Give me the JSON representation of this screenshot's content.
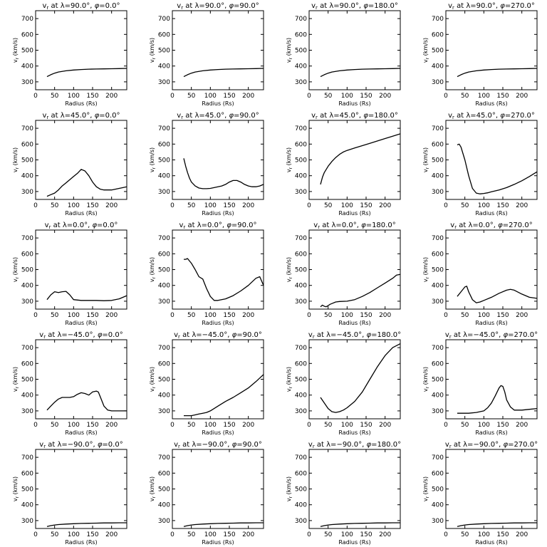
{
  "chart_data": [
    {
      "type": "line",
      "title": "v$_r$ at λ=90.0°, φ=0.0°",
      "title_parts": {
        "sym": "v",
        "sub": "r",
        "lat": "90.0",
        "lon": "0.0"
      },
      "xlabel": "Radius (Rs)",
      "ylabel": "v_r (km/s)",
      "xlim": [
        0,
        240
      ],
      "ylim": [
        250,
        750
      ],
      "xticks": [
        0,
        50,
        100,
        150,
        200
      ],
      "yticks": [
        300,
        400,
        500,
        600,
        700
      ],
      "x": [
        30,
        40,
        50,
        60,
        80,
        100,
        120,
        140,
        160,
        180,
        200,
        220,
        240
      ],
      "y": [
        333,
        345,
        355,
        362,
        370,
        375,
        378,
        380,
        381,
        382,
        383,
        384,
        385
      ]
    },
    {
      "type": "line",
      "title": "v_r at λ=90.0°, φ=90.0°",
      "title_parts": {
        "sym": "v",
        "sub": "r",
        "lat": "90.0",
        "lon": "90.0"
      },
      "xlabel": "Radius (Rs)",
      "ylabel": "v_r (km/s)",
      "xlim": [
        0,
        240
      ],
      "ylim": [
        250,
        750
      ],
      "xticks": [
        0,
        50,
        100,
        150,
        200
      ],
      "yticks": [
        300,
        400,
        500,
        600,
        700
      ],
      "x": [
        30,
        40,
        50,
        60,
        80,
        100,
        120,
        140,
        160,
        180,
        200,
        220,
        240
      ],
      "y": [
        333,
        345,
        355,
        362,
        370,
        375,
        378,
        380,
        381,
        382,
        383,
        384,
        385
      ]
    },
    {
      "type": "line",
      "title": "v_r at λ=90.0°, φ=180.0°",
      "title_parts": {
        "sym": "v",
        "sub": "r",
        "lat": "90.0",
        "lon": "180.0"
      },
      "xlabel": "Radius (Rs)",
      "ylabel": "v_r (km/s)",
      "xlim": [
        0,
        240
      ],
      "ylim": [
        250,
        750
      ],
      "xticks": [
        0,
        50,
        100,
        150,
        200
      ],
      "yticks": [
        300,
        400,
        500,
        600,
        700
      ],
      "x": [
        30,
        40,
        50,
        60,
        80,
        100,
        120,
        140,
        160,
        180,
        200,
        220,
        240
      ],
      "y": [
        333,
        345,
        355,
        362,
        370,
        375,
        378,
        380,
        381,
        382,
        383,
        384,
        385
      ]
    },
    {
      "type": "line",
      "title": "v_r at λ=90.0°, φ=270.0°",
      "title_parts": {
        "sym": "v",
        "sub": "r",
        "lat": "90.0",
        "lon": "270.0"
      },
      "xlabel": "Radius (Rs)",
      "ylabel": "v_r (km/s)",
      "xlim": [
        0,
        240
      ],
      "ylim": [
        250,
        750
      ],
      "xticks": [
        0,
        50,
        100,
        150,
        200
      ],
      "yticks": [
        300,
        400,
        500,
        600,
        700
      ],
      "x": [
        30,
        40,
        50,
        60,
        80,
        100,
        120,
        140,
        160,
        180,
        200,
        220,
        240
      ],
      "y": [
        333,
        345,
        355,
        362,
        370,
        375,
        378,
        380,
        381,
        382,
        383,
        384,
        385
      ]
    },
    {
      "type": "line",
      "title": "v_r at λ=45.0°, φ=0.0°",
      "title_parts": {
        "sym": "v",
        "sub": "r",
        "lat": "45.0",
        "lon": "0.0"
      },
      "xlabel": "Radius (Rs)",
      "ylabel": "v_r (km/s)",
      "xlim": [
        0,
        240
      ],
      "ylim": [
        250,
        750
      ],
      "xticks": [
        0,
        50,
        100,
        150,
        200
      ],
      "yticks": [
        300,
        400,
        500,
        600,
        700
      ],
      "x": [
        30,
        40,
        50,
        60,
        70,
        80,
        90,
        100,
        110,
        120,
        130,
        140,
        150,
        160,
        170,
        180,
        190,
        200,
        210,
        220,
        230,
        240
      ],
      "y": [
        270,
        280,
        290,
        310,
        335,
        355,
        375,
        395,
        415,
        440,
        430,
        400,
        360,
        330,
        315,
        310,
        310,
        310,
        315,
        320,
        325,
        330
      ]
    },
    {
      "type": "line",
      "title": "v_r at λ=45.0°, φ=90.0°",
      "title_parts": {
        "sym": "v",
        "sub": "r",
        "lat": "45.0",
        "lon": "90.0"
      },
      "xlabel": "Radius (Rs)",
      "ylabel": "v_r (km/s)",
      "xlim": [
        0,
        240
      ],
      "ylim": [
        250,
        750
      ],
      "xticks": [
        0,
        50,
        100,
        150,
        200
      ],
      "yticks": [
        300,
        400,
        500,
        600,
        700
      ],
      "x": [
        30,
        35,
        40,
        45,
        50,
        60,
        70,
        80,
        90,
        100,
        110,
        120,
        130,
        140,
        150,
        160,
        170,
        180,
        190,
        200,
        210,
        220,
        230,
        240
      ],
      "y": [
        510,
        460,
        420,
        385,
        360,
        335,
        322,
        318,
        318,
        320,
        325,
        330,
        335,
        345,
        360,
        370,
        370,
        360,
        345,
        335,
        330,
        330,
        335,
        345
      ]
    },
    {
      "type": "line",
      "title": "v_r at λ=45.0°, φ=180.0°",
      "title_parts": {
        "sym": "v",
        "sub": "r",
        "lat": "45.0",
        "lon": "180.0"
      },
      "xlabel": "Radius (Rs)",
      "ylabel": "v_r (km/s)",
      "xlim": [
        0,
        240
      ],
      "ylim": [
        250,
        750
      ],
      "xticks": [
        0,
        50,
        100,
        150,
        200
      ],
      "yticks": [
        300,
        400,
        500,
        600,
        700
      ],
      "x": [
        30,
        35,
        40,
        50,
        60,
        70,
        80,
        90,
        100,
        120,
        140,
        160,
        180,
        200,
        220,
        240
      ],
      "y": [
        345,
        390,
        420,
        460,
        490,
        515,
        535,
        550,
        560,
        575,
        590,
        605,
        620,
        635,
        650,
        665
      ]
    },
    {
      "type": "line",
      "title": "v_r at λ=45.0°, φ=270.0°",
      "title_parts": {
        "sym": "v",
        "sub": "r",
        "lat": "45.0",
        "lon": "270.0"
      },
      "xlabel": "Radius (Rs)",
      "ylabel": "v_r (km/s)",
      "xlim": [
        0,
        240
      ],
      "ylim": [
        250,
        750
      ],
      "xticks": [
        0,
        50,
        100,
        150,
        200
      ],
      "yticks": [
        300,
        400,
        500,
        600,
        700
      ],
      "x": [
        30,
        35,
        40,
        50,
        60,
        70,
        80,
        90,
        100,
        110,
        120,
        140,
        160,
        180,
        200,
        220,
        240
      ],
      "y": [
        595,
        600,
        580,
        500,
        400,
        320,
        290,
        285,
        288,
        292,
        298,
        310,
        325,
        345,
        368,
        395,
        425
      ]
    },
    {
      "type": "line",
      "title": "v_r at λ=0.0°, φ=0.0°",
      "title_parts": {
        "sym": "v",
        "sub": "r",
        "lat": "0.0",
        "lon": "0.0"
      },
      "xlabel": "Radius (Rs)",
      "ylabel": "v_r (km/s)",
      "xlim": [
        0,
        240
      ],
      "ylim": [
        250,
        750
      ],
      "xticks": [
        0,
        50,
        100,
        150,
        200
      ],
      "yticks": [
        300,
        400,
        500,
        600,
        700
      ],
      "x": [
        30,
        40,
        50,
        60,
        70,
        80,
        90,
        100,
        120,
        140,
        160,
        180,
        200,
        220,
        240
      ],
      "y": [
        310,
        340,
        360,
        355,
        360,
        362,
        340,
        310,
        305,
        305,
        305,
        303,
        305,
        315,
        335
      ]
    },
    {
      "type": "line",
      "title": "v_r at λ=0.0°, φ=90.0°",
      "title_parts": {
        "sym": "v",
        "sub": "r",
        "lat": "0.0",
        "lon": "90.0"
      },
      "xlabel": "Radius (Rs)",
      "ylabel": "v_r (km/s)",
      "xlim": [
        0,
        240
      ],
      "ylim": [
        250,
        750
      ],
      "xticks": [
        0,
        50,
        100,
        150,
        200
      ],
      "yticks": [
        300,
        400,
        500,
        600,
        700
      ],
      "x": [
        30,
        35,
        40,
        50,
        60,
        70,
        80,
        90,
        100,
        110,
        120,
        140,
        160,
        180,
        200,
        220,
        230,
        240
      ],
      "y": [
        565,
        565,
        570,
        540,
        500,
        455,
        440,
        380,
        330,
        305,
        305,
        315,
        335,
        365,
        400,
        445,
        455,
        400
      ]
    },
    {
      "type": "line",
      "title": "v_r at λ=0.0°, φ=180.0°",
      "title_parts": {
        "sym": "v",
        "sub": "r",
        "lat": "0.0",
        "lon": "180.0"
      },
      "xlabel": "Radius (Rs)",
      "ylabel": "v_r (km/s)",
      "xlim": [
        0,
        240
      ],
      "ylim": [
        250,
        750
      ],
      "xticks": [
        0,
        50,
        100,
        150,
        200
      ],
      "yticks": [
        300,
        400,
        500,
        600,
        700
      ],
      "x": [
        30,
        35,
        40,
        45,
        50,
        55,
        60,
        70,
        80,
        100,
        120,
        140,
        160,
        180,
        200,
        220,
        230,
        240
      ],
      "y": [
        265,
        275,
        268,
        265,
        272,
        280,
        285,
        295,
        298,
        300,
        310,
        330,
        355,
        385,
        415,
        445,
        465,
        470
      ]
    },
    {
      "type": "line",
      "title": "v_r at λ=0.0°, φ=270.0°",
      "title_parts": {
        "sym": "v",
        "sub": "r",
        "lat": "0.0",
        "lon": "270.0"
      },
      "xlabel": "Radius (Rs)",
      "ylabel": "v_r (km/s)",
      "xlim": [
        0,
        240
      ],
      "ylim": [
        250,
        750
      ],
      "xticks": [
        0,
        50,
        100,
        150,
        200
      ],
      "yticks": [
        300,
        400,
        500,
        600,
        700
      ],
      "x": [
        30,
        40,
        50,
        55,
        60,
        70,
        80,
        90,
        100,
        120,
        140,
        160,
        170,
        180,
        200,
        220,
        240
      ],
      "y": [
        330,
        360,
        390,
        395,
        360,
        310,
        290,
        295,
        305,
        325,
        350,
        370,
        375,
        370,
        345,
        325,
        318
      ]
    },
    {
      "type": "line",
      "title": "v_r at λ=-45.0°, φ=0.0°",
      "title_parts": {
        "sym": "v",
        "sub": "r",
        "lat": "−45.0",
        "lon": "0.0"
      },
      "xlabel": "Radius (Rs)",
      "ylabel": "v_r (km/s)",
      "xlim": [
        0,
        240
      ],
      "ylim": [
        250,
        750
      ],
      "xticks": [
        0,
        50,
        100,
        150,
        200
      ],
      "yticks": [
        300,
        400,
        500,
        600,
        700
      ],
      "x": [
        30,
        40,
        50,
        60,
        70,
        80,
        90,
        100,
        110,
        120,
        130,
        140,
        150,
        160,
        165,
        170,
        180,
        190,
        200,
        220,
        240
      ],
      "y": [
        305,
        330,
        355,
        375,
        385,
        385,
        385,
        390,
        405,
        415,
        410,
        400,
        420,
        425,
        420,
        390,
        330,
        305,
        300,
        300,
        300
      ]
    },
    {
      "type": "line",
      "title": "v_r at λ=-45.0°, φ=90.0°",
      "title_parts": {
        "sym": "v",
        "sub": "r",
        "lat": "−45.0",
        "lon": "90.0"
      },
      "xlabel": "Radius (Rs)",
      "ylabel": "v_r (km/s)",
      "xlim": [
        0,
        240
      ],
      "ylim": [
        250,
        750
      ],
      "xticks": [
        0,
        50,
        100,
        150,
        200
      ],
      "yticks": [
        300,
        400,
        500,
        600,
        700
      ],
      "x": [
        30,
        40,
        50,
        60,
        70,
        80,
        90,
        100,
        120,
        140,
        160,
        180,
        200,
        220,
        240
      ],
      "y": [
        270,
        270,
        270,
        275,
        280,
        285,
        290,
        300,
        330,
        360,
        385,
        415,
        445,
        485,
        530
      ]
    },
    {
      "type": "line",
      "title": "v_r at λ=-45.0°, φ=180.0°",
      "title_parts": {
        "sym": "v",
        "sub": "r",
        "lat": "−45.0",
        "lon": "180.0"
      },
      "xlabel": "Radius (Rs)",
      "ylabel": "v_r (km/s)",
      "xlim": [
        0,
        240
      ],
      "ylim": [
        250,
        750
      ],
      "xticks": [
        0,
        50,
        100,
        150,
        200
      ],
      "yticks": [
        300,
        400,
        500,
        600,
        700
      ],
      "x": [
        30,
        40,
        50,
        60,
        70,
        80,
        90,
        100,
        120,
        140,
        160,
        180,
        200,
        220,
        240
      ],
      "y": [
        385,
        350,
        315,
        295,
        290,
        295,
        305,
        320,
        360,
        420,
        500,
        580,
        650,
        700,
        725
      ]
    },
    {
      "type": "line",
      "title": "v_r at λ=-45.0°, φ=270.0°",
      "title_parts": {
        "sym": "v",
        "sub": "r",
        "lat": "−45.0",
        "lon": "270.0"
      },
      "xlabel": "Radius (Rs)",
      "ylabel": "v_r (km/s)",
      "xlim": [
        0,
        240
      ],
      "ylim": [
        250,
        750
      ],
      "xticks": [
        0,
        50,
        100,
        150,
        200
      ],
      "yticks": [
        300,
        400,
        500,
        600,
        700
      ],
      "x": [
        30,
        40,
        60,
        80,
        100,
        110,
        120,
        130,
        140,
        145,
        150,
        155,
        160,
        170,
        180,
        200,
        220,
        240
      ],
      "y": [
        285,
        285,
        285,
        290,
        300,
        320,
        350,
        395,
        445,
        460,
        455,
        420,
        370,
        325,
        305,
        305,
        310,
        315
      ]
    },
    {
      "type": "line",
      "title": "v_r at λ=-90.0°, φ=0.0°",
      "title_parts": {
        "sym": "v",
        "sub": "r",
        "lat": "−90.0",
        "lon": "0.0"
      },
      "xlabel": "Radius (Rs)",
      "ylabel": "v_r (km/s)",
      "xlim": [
        0,
        240
      ],
      "ylim": [
        250,
        750
      ],
      "xticks": [
        0,
        50,
        100,
        150,
        200
      ],
      "yticks": [
        300,
        400,
        500,
        600,
        700
      ],
      "x": [
        30,
        40,
        50,
        60,
        80,
        100,
        120,
        140,
        160,
        180,
        200,
        220,
        240
      ],
      "y": [
        262,
        268,
        272,
        275,
        278,
        280,
        282,
        283,
        284,
        285,
        285,
        286,
        286
      ]
    },
    {
      "type": "line",
      "title": "v_r at λ=-90.0°, φ=90.0°",
      "title_parts": {
        "sym": "v",
        "sub": "r",
        "lat": "−90.0",
        "lon": "90.0"
      },
      "xlabel": "Radius (Rs)",
      "ylabel": "v_r (km/s)",
      "xlim": [
        0,
        240
      ],
      "ylim": [
        250,
        750
      ],
      "xticks": [
        0,
        50,
        100,
        150,
        200
      ],
      "yticks": [
        300,
        400,
        500,
        600,
        700
      ],
      "x": [
        30,
        40,
        50,
        60,
        80,
        100,
        120,
        140,
        160,
        180,
        200,
        220,
        240
      ],
      "y": [
        262,
        268,
        272,
        275,
        278,
        280,
        282,
        283,
        284,
        285,
        285,
        286,
        286
      ]
    },
    {
      "type": "line",
      "title": "v_r at λ=-90.0°, φ=180.0°",
      "title_parts": {
        "sym": "v",
        "sub": "r",
        "lat": "−90.0",
        "lon": "180.0"
      },
      "xlabel": "Radius (Rs)",
      "ylabel": "v_r (km/s)",
      "xlim": [
        0,
        240
      ],
      "ylim": [
        250,
        750
      ],
      "xticks": [
        0,
        50,
        100,
        150,
        200
      ],
      "yticks": [
        300,
        400,
        500,
        600,
        700
      ],
      "x": [
        30,
        40,
        50,
        60,
        80,
        100,
        120,
        140,
        160,
        180,
        200,
        220,
        240
      ],
      "y": [
        262,
        268,
        272,
        275,
        278,
        280,
        282,
        283,
        284,
        285,
        285,
        286,
        286
      ]
    },
    {
      "type": "line",
      "title": "v_r at λ=-90.0°, φ=270.0°",
      "title_parts": {
        "sym": "v",
        "sub": "r",
        "lat": "−90.0",
        "lon": "270.0"
      },
      "xlabel": "Radius (Rs)",
      "ylabel": "v_r (km/s)",
      "xlim": [
        0,
        240
      ],
      "ylim": [
        250,
        750
      ],
      "xticks": [
        0,
        50,
        100,
        150,
        200
      ],
      "yticks": [
        300,
        400,
        500,
        600,
        700
      ],
      "x": [
        30,
        40,
        50,
        60,
        80,
        100,
        120,
        140,
        160,
        180,
        200,
        220,
        240
      ],
      "y": [
        262,
        268,
        272,
        275,
        278,
        280,
        282,
        283,
        284,
        285,
        285,
        286,
        286
      ]
    }
  ]
}
